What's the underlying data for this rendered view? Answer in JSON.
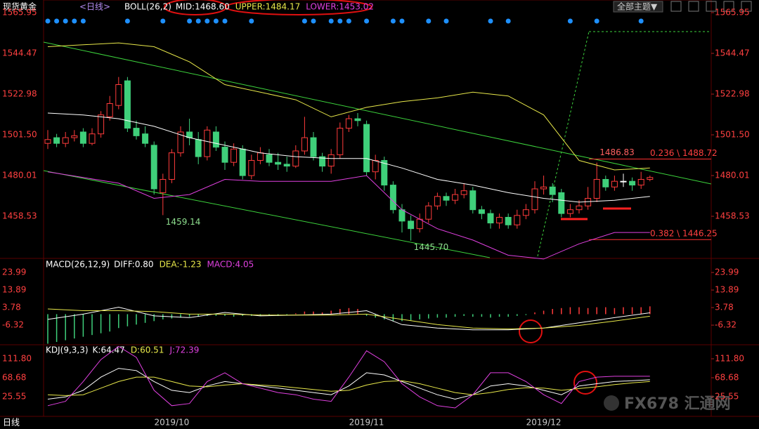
{
  "header": {
    "symbol": "现货黄金",
    "period": "<日线>",
    "button": "全部主题▼",
    "footer": "日线",
    "watermark": "FX678 汇通网"
  },
  "chart_data": [
    {
      "type": "candlestick",
      "title": "BOLL(26,2)",
      "readouts": [
        {
          "text": "MID:1468.60",
          "color": "#ffffff"
        },
        {
          "text": "UPPER:1484.17",
          "color": "#e8e84a"
        },
        {
          "text": "LOWER:1453.02",
          "color": "#e040e0"
        }
      ],
      "categories": [
        null,
        null,
        null,
        null,
        null,
        null,
        null,
        null,
        null,
        null,
        null,
        null,
        null,
        null,
        "2019/10",
        null,
        null,
        null,
        null,
        null,
        null,
        null,
        null,
        null,
        null,
        null,
        null,
        null,
        null,
        null,
        null,
        null,
        null,
        null,
        null,
        null,
        "2019/11",
        null,
        null,
        null,
        null,
        null,
        null,
        null,
        null,
        null,
        null,
        null,
        null,
        null,
        null,
        null,
        null,
        null,
        null,
        null,
        "2019/12",
        null,
        null,
        null,
        null,
        null,
        null,
        null,
        null,
        null,
        null,
        null,
        null
      ],
      "ohlc": [
        [
          1497,
          1504,
          1494,
          1499
        ],
        [
          1500,
          1502,
          1495,
          1497
        ],
        [
          1497,
          1503,
          1495,
          1500
        ],
        [
          1500,
          1504,
          1498,
          1501
        ],
        [
          1503,
          1505,
          1495,
          1497
        ],
        [
          1497,
          1505,
          1496,
          1502
        ],
        [
          1502,
          1514,
          1500,
          1512
        ],
        [
          1511,
          1522,
          1509,
          1518
        ],
        [
          1517,
          1532,
          1515,
          1528
        ],
        [
          1530,
          1532,
          1503,
          1505
        ],
        [
          1505,
          1509,
          1499,
          1501
        ],
        [
          1502,
          1506,
          1495,
          1497
        ],
        [
          1496,
          1498,
          1470,
          1473
        ],
        [
          1471,
          1481,
          1459.14,
          1478
        ],
        [
          1478,
          1494,
          1476,
          1492
        ],
        [
          1492,
          1506,
          1490,
          1503
        ],
        [
          1503,
          1510,
          1496,
          1500
        ],
        [
          1499,
          1503,
          1486,
          1490
        ],
        [
          1490,
          1506,
          1488,
          1504
        ],
        [
          1503,
          1506,
          1493,
          1495
        ],
        [
          1495,
          1498,
          1483,
          1487
        ],
        [
          1487,
          1497,
          1485,
          1494
        ],
        [
          1494,
          1496,
          1478,
          1480
        ],
        [
          1480,
          1491,
          1478,
          1488
        ],
        [
          1488,
          1495,
          1486,
          1492
        ],
        [
          1491,
          1494,
          1485,
          1487
        ],
        [
          1487,
          1492,
          1483,
          1486
        ],
        [
          1486,
          1490,
          1482,
          1485
        ],
        [
          1485,
          1496,
          1484,
          1493
        ],
        [
          1493,
          1511,
          1491,
          1500
        ],
        [
          1500,
          1503,
          1488,
          1490
        ],
        [
          1490,
          1492,
          1482,
          1485
        ],
        [
          1485,
          1494,
          1481,
          1491
        ],
        [
          1491,
          1508,
          1489,
          1505
        ],
        [
          1505,
          1512,
          1503,
          1510
        ],
        [
          1510,
          1513,
          1506,
          1509
        ],
        [
          1507,
          1509,
          1480,
          1482
        ],
        [
          1482,
          1491,
          1478,
          1488
        ],
        [
          1488,
          1490,
          1472,
          1475
        ],
        [
          1475,
          1477,
          1460,
          1462
        ],
        [
          1462,
          1465,
          1450,
          1456
        ],
        [
          1456,
          1459,
          1445.7,
          1452
        ],
        [
          1452,
          1460,
          1450,
          1457
        ],
        [
          1457,
          1466,
          1455,
          1464
        ],
        [
          1464,
          1471,
          1462,
          1469
        ],
        [
          1469,
          1471,
          1464,
          1467
        ],
        [
          1467,
          1473,
          1465,
          1470
        ],
        [
          1470,
          1476,
          1468,
          1472
        ],
        [
          1472,
          1474,
          1460,
          1462
        ],
        [
          1462,
          1464,
          1457,
          1460
        ],
        [
          1460,
          1462,
          1452,
          1455
        ],
        [
          1455,
          1460,
          1452,
          1458
        ],
        [
          1458,
          1460,
          1452,
          1454
        ],
        [
          1454,
          1462,
          1452,
          1459
        ],
        [
          1459,
          1465,
          1457,
          1462
        ],
        [
          1462,
          1477,
          1460,
          1473
        ],
        [
          1473,
          1480,
          1470,
          1474
        ],
        [
          1474,
          1476,
          1466,
          1470
        ],
        [
          1471,
          1473,
          1458,
          1460
        ],
        [
          1460,
          1465,
          1458,
          1462
        ],
        [
          1462,
          1467,
          1460,
          1464
        ],
        [
          1464,
          1474,
          1462,
          1468
        ],
        [
          1468,
          1486.83,
          1466,
          1478
        ],
        [
          1478,
          1480,
          1472,
          1474
        ],
        [
          1474,
          1480,
          1472,
          1477
        ],
        [
          1477,
          1481,
          1474,
          1477
        ],
        [
          1477,
          1479,
          1472,
          1475
        ],
        [
          1475,
          1482,
          1473,
          1478
        ],
        [
          1478,
          1480,
          1477,
          1479
        ]
      ],
      "up_color": "#ff3b3b",
      "down_color": "#3fd07a",
      "ylim": [
        1436.7,
        1565.95
      ],
      "yticks": [
        1565.95,
        1544.47,
        1522.98,
        {
          "value": 1501.5,
          "label": "1501.50"
        },
        1480.01,
        1458.53
      ],
      "lines": [
        {
          "color": "#ffffff",
          "x": [
            0,
            4,
            8,
            12,
            16,
            20,
            24,
            28,
            32,
            36,
            40,
            44,
            48,
            52,
            56,
            60,
            64,
            68
          ],
          "values": [
            1513,
            1512,
            1510,
            1506,
            1500,
            1496,
            1492,
            1490,
            1489,
            1489,
            1484,
            1478,
            1475,
            1471,
            1468,
            1466,
            1467,
            1469
          ]
        },
        {
          "color": "#e8e84a",
          "x": [
            0,
            4,
            8,
            12,
            16,
            20,
            24,
            28,
            32,
            36,
            40,
            44,
            48,
            52,
            56,
            60,
            64,
            68
          ],
          "values": [
            1548,
            1549,
            1550,
            1548,
            1540,
            1528,
            1524,
            1520,
            1511,
            1516,
            1519,
            1521,
            1524,
            1522,
            1512,
            1488,
            1483,
            1484
          ]
        },
        {
          "color": "#e040e0",
          "x": [
            0,
            4,
            8,
            12,
            16,
            20,
            24,
            28,
            32,
            36,
            40,
            44,
            48,
            52,
            56,
            60,
            64,
            68
          ],
          "values": [
            1482,
            1479,
            1476,
            1468,
            1470,
            1478,
            1477,
            1477,
            1477,
            1480,
            1462,
            1452,
            1446,
            1438,
            1436,
            1444,
            1450,
            1450
          ]
        }
      ],
      "annotations": [
        {
          "index": 13,
          "value": 1459.14
        },
        {
          "index": 41,
          "value": 1445.7,
          "label": "1445.70"
        },
        {
          "index": 62,
          "value": 1486.83
        }
      ],
      "levels": [
        {
          "value": 1488.72,
          "label": "0.236 \\ 1488.72"
        },
        {
          "value": 1446.25,
          "label": "0.382 \\ 1446.25"
        }
      ],
      "signals": [
        0,
        1,
        2,
        3,
        4,
        9,
        13,
        16,
        17,
        18,
        19,
        20,
        23,
        29,
        30,
        32,
        33,
        34,
        36,
        39,
        40,
        43,
        45,
        50,
        52,
        59,
        62,
        67
      ]
    },
    {
      "type": "macd",
      "title": "MACD(26,12,9)",
      "readouts": [
        {
          "text": "DIFF:0.80",
          "color": "#ffffff"
        },
        {
          "text": "DEA:-1.23",
          "color": "#e8e84a"
        },
        {
          "text": "MACD:4.05",
          "color": "#e040e0"
        }
      ],
      "values": [
        -17,
        -16,
        -15,
        -14,
        -13,
        -12,
        -11,
        -10,
        -8,
        -7,
        -6,
        -5,
        -4,
        -3,
        -2.5,
        -2,
        -1.5,
        -1.5,
        -1,
        -1,
        -1,
        -1.5,
        -1,
        -1,
        -1,
        -1,
        -1,
        -0.5,
        0.5,
        1.5,
        1.5,
        1,
        2,
        3,
        3.5,
        3,
        -1,
        -2,
        -3,
        -4,
        -4,
        -3.5,
        -3,
        -2.5,
        -2,
        -2,
        -1.5,
        -1,
        -1.5,
        -1.5,
        -2,
        -1.5,
        -1.5,
        -1,
        -0.5,
        1,
        2,
        3,
        3.5,
        4,
        4,
        3.5,
        4,
        4,
        3.5,
        4,
        4,
        4,
        4.5
      ],
      "up_color": "#ff3b3b",
      "down_color": "#3fd07a",
      "lines": [
        {
          "color": "#ffffff",
          "x": [
            0,
            4,
            8,
            12,
            16,
            20,
            24,
            28,
            32,
            36,
            40,
            44,
            48,
            52,
            56,
            60,
            64,
            68
          ],
          "values": [
            -3,
            0,
            4,
            -1,
            -2,
            1,
            -1,
            -0.5,
            0,
            2,
            -6,
            -8,
            -9,
            -9,
            -8,
            -5,
            -2,
            0.8
          ]
        },
        {
          "color": "#e8e84a",
          "x": [
            0,
            4,
            8,
            12,
            16,
            20,
            24,
            28,
            32,
            36,
            40,
            44,
            48,
            52,
            56,
            60,
            64,
            68
          ],
          "values": [
            3,
            2,
            2,
            1.5,
            0,
            0,
            -0.5,
            -0.5,
            -0.5,
            0,
            -3,
            -6,
            -8,
            -8.5,
            -8,
            -6.5,
            -4,
            -1.2
          ]
        }
      ],
      "ylim": [
        -17.2,
        31.3
      ],
      "yticks": [
        23.99,
        13.89,
        3.78,
        -6.32
      ]
    },
    {
      "type": "line",
      "title": "KDJ(9,3,3)",
      "readouts": [
        {
          "text": "K:64.47",
          "color": "#ffffff"
        },
        {
          "text": "D:60.51",
          "color": "#e8e84a"
        },
        {
          "text": "J:72.39",
          "color": "#e040e0"
        }
      ],
      "lines": [
        {
          "color": "#ffffff",
          "x": [
            0,
            2,
            4,
            6,
            8,
            10,
            12,
            14,
            16,
            18,
            20,
            22,
            24,
            26,
            28,
            30,
            32,
            34,
            36,
            38,
            40,
            42,
            44,
            46,
            48,
            50,
            52,
            54,
            56,
            58,
            60,
            62,
            64,
            66,
            68
          ],
          "values": [
            20,
            25,
            40,
            70,
            90,
            85,
            60,
            40,
            35,
            50,
            60,
            55,
            50,
            45,
            40,
            35,
            30,
            50,
            80,
            75,
            60,
            45,
            30,
            20,
            30,
            50,
            55,
            50,
            40,
            30,
            50,
            55,
            60,
            62,
            64
          ]
        },
        {
          "color": "#e8e84a",
          "x": [
            0,
            2,
            4,
            6,
            8,
            10,
            12,
            14,
            16,
            18,
            20,
            22,
            24,
            26,
            28,
            30,
            32,
            34,
            36,
            38,
            40,
            42,
            44,
            46,
            48,
            50,
            52,
            54,
            56,
            58,
            60,
            62,
            64,
            66,
            68
          ],
          "values": [
            30,
            28,
            30,
            45,
            60,
            70,
            70,
            60,
            50,
            48,
            52,
            55,
            52,
            50,
            46,
            42,
            38,
            40,
            52,
            60,
            62,
            55,
            45,
            35,
            30,
            35,
            42,
            46,
            45,
            40,
            44,
            48,
            53,
            57,
            60
          ]
        },
        {
          "color": "#e040e0",
          "x": [
            0,
            2,
            4,
            6,
            8,
            10,
            12,
            14,
            16,
            18,
            20,
            22,
            24,
            26,
            28,
            30,
            32,
            34,
            36,
            38,
            40,
            42,
            44,
            46,
            48,
            50,
            52,
            54,
            56,
            58,
            60,
            62,
            64,
            66,
            68
          ],
          "values": [
            5,
            15,
            60,
            110,
            140,
            115,
            40,
            5,
            10,
            60,
            80,
            55,
            45,
            35,
            30,
            20,
            15,
            70,
            130,
            105,
            55,
            25,
            5,
            0,
            30,
            80,
            80,
            60,
            30,
            10,
            60,
            70,
            72,
            72,
            72
          ]
        }
      ],
      "ylim": [
        -19.2,
        142.1
      ],
      "yticks": [
        {
          "value": 111.8,
          "label": "111.80"
        },
        68.68,
        25.55
      ]
    }
  ]
}
